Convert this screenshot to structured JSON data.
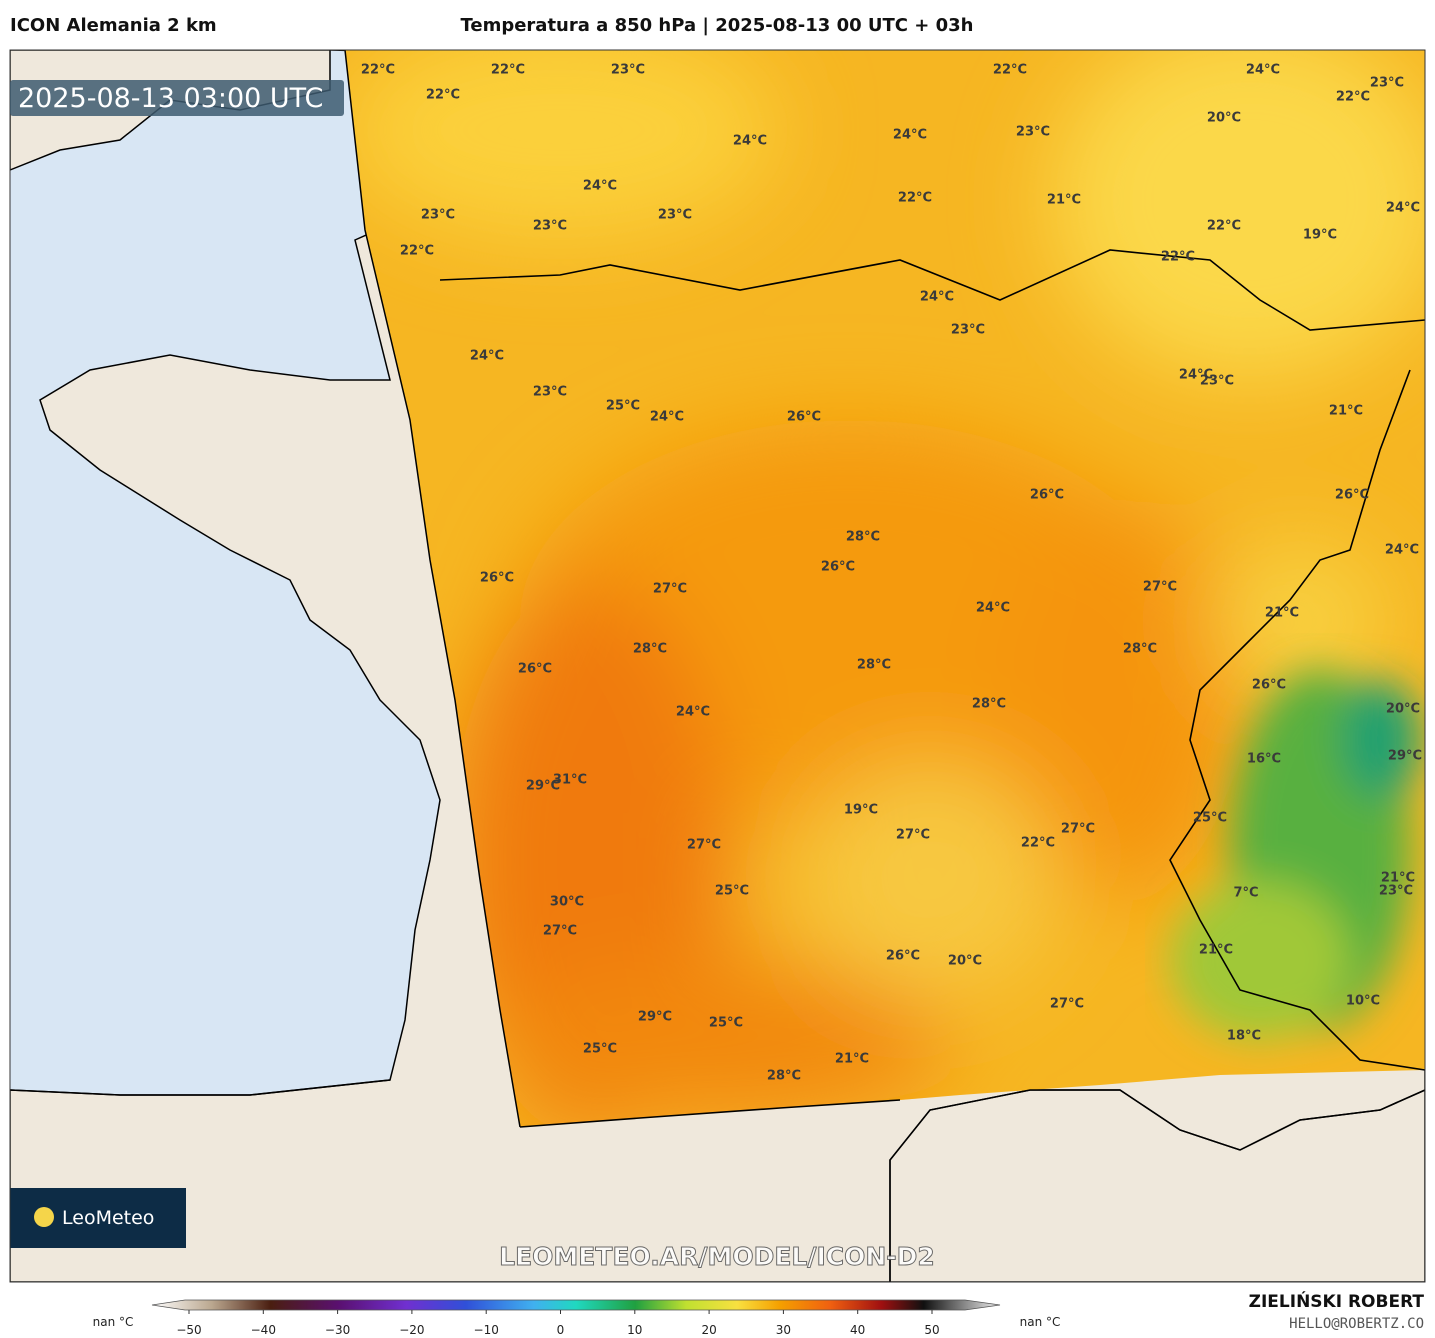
{
  "header": {
    "model": "ICON Alemania 2 km",
    "title": "Temperatura a 850 hPa | 2025-08-13 00 UTC + 03h"
  },
  "timestamp": "2025-08-13 03:00 UTC",
  "map_labels": [
    "22°C",
    "22°C",
    "23°C",
    "22°C",
    "24°C",
    "23°C",
    "22°C",
    "22°C",
    "20°C",
    "24°C",
    "24°C",
    "23°C",
    "24°C",
    "22°C",
    "21°C",
    "24°C",
    "23°C",
    "23°C",
    "23°C",
    "22°C",
    "19°C",
    "22°C",
    "22°C",
    "24°C",
    "23°C",
    "24°C",
    "24°C",
    "23°C",
    "23°C",
    "25°C",
    "24°C",
    "26°C",
    "21°C",
    "26°C",
    "26°C",
    "28°C",
    "24°C",
    "26°C",
    "26°C",
    "27°C",
    "27°C",
    "24°C",
    "21°C",
    "28°C",
    "28°C",
    "26°C",
    "28°C",
    "26°C",
    "28°C",
    "24°C",
    "20°C",
    "29°C",
    "31°C",
    "16°C",
    "29°C",
    "19°C",
    "27°C",
    "25°C",
    "27°C",
    "22°C",
    "27°C",
    "21°C",
    "23°C",
    "7°C",
    "25°C",
    "30°C",
    "27°C",
    "21°C",
    "26°C",
    "20°C",
    "10°C",
    "27°C",
    "29°C",
    "25°C",
    "18°C",
    "25°C",
    "21°C",
    "28°C"
  ],
  "logo": "LeoMeteo",
  "watermark": "LEOMETEO.AR/MODEL/ICON-D2",
  "colorbar": {
    "left_label": "nan °C",
    "right_label": "nan °C",
    "ticks": [
      {
        "value": -50,
        "label": "−50"
      },
      {
        "value": -40,
        "label": "−40"
      },
      {
        "value": -30,
        "label": "−30"
      },
      {
        "value": -20,
        "label": "−20"
      },
      {
        "value": -10,
        "label": "−10"
      },
      0,
      10,
      20,
      30,
      40,
      50
    ]
  },
  "credit": {
    "author": "ZIELIŃSKI ROBERT",
    "email": "HELLO@ROBERTZ.CO"
  }
}
